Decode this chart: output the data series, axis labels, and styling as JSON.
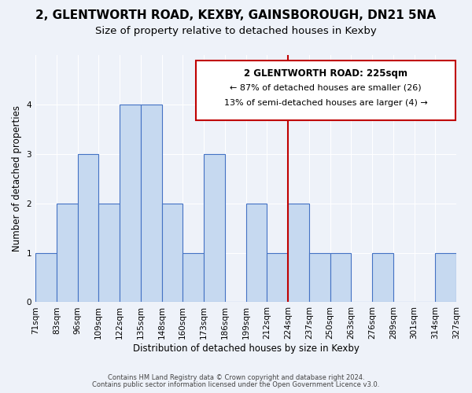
{
  "title": "2, GLENTWORTH ROAD, KEXBY, GAINSBOROUGH, DN21 5NA",
  "subtitle": "Size of property relative to detached houses in Kexby",
  "xlabel": "Distribution of detached houses by size in Kexby",
  "ylabel": "Number of detached properties",
  "bin_labels": [
    "71sqm",
    "83sqm",
    "96sqm",
    "109sqm",
    "122sqm",
    "135sqm",
    "148sqm",
    "160sqm",
    "173sqm",
    "186sqm",
    "199sqm",
    "212sqm",
    "224sqm",
    "237sqm",
    "250sqm",
    "263sqm",
    "276sqm",
    "289sqm",
    "301sqm",
    "314sqm",
    "327sqm"
  ],
  "bar_heights": [
    1,
    2,
    3,
    2,
    4,
    4,
    2,
    1,
    3,
    0,
    2,
    1,
    2,
    1,
    1,
    0,
    1,
    0,
    0,
    1
  ],
  "bar_color": "#c6d9f0",
  "bar_edge_color": "#4472c4",
  "marker_value_index": 12,
  "marker_color": "#c00000",
  "annotation_title": "2 GLENTWORTH ROAD: 225sqm",
  "annotation_line1": "← 87% of detached houses are smaller (26)",
  "annotation_line2": "13% of semi-detached houses are larger (4) →",
  "annotation_box_color": "#ffffff",
  "annotation_box_edge_color": "#c00000",
  "ylim": [
    0,
    5
  ],
  "yticks": [
    0,
    1,
    2,
    3,
    4,
    5
  ],
  "bg_color": "#eef2f9",
  "footer_line1": "Contains HM Land Registry data © Crown copyright and database right 2024.",
  "footer_line2": "Contains public sector information licensed under the Open Government Licence v3.0.",
  "title_fontsize": 11,
  "subtitle_fontsize": 9.5,
  "axis_label_fontsize": 8.5,
  "tick_fontsize": 7.5
}
